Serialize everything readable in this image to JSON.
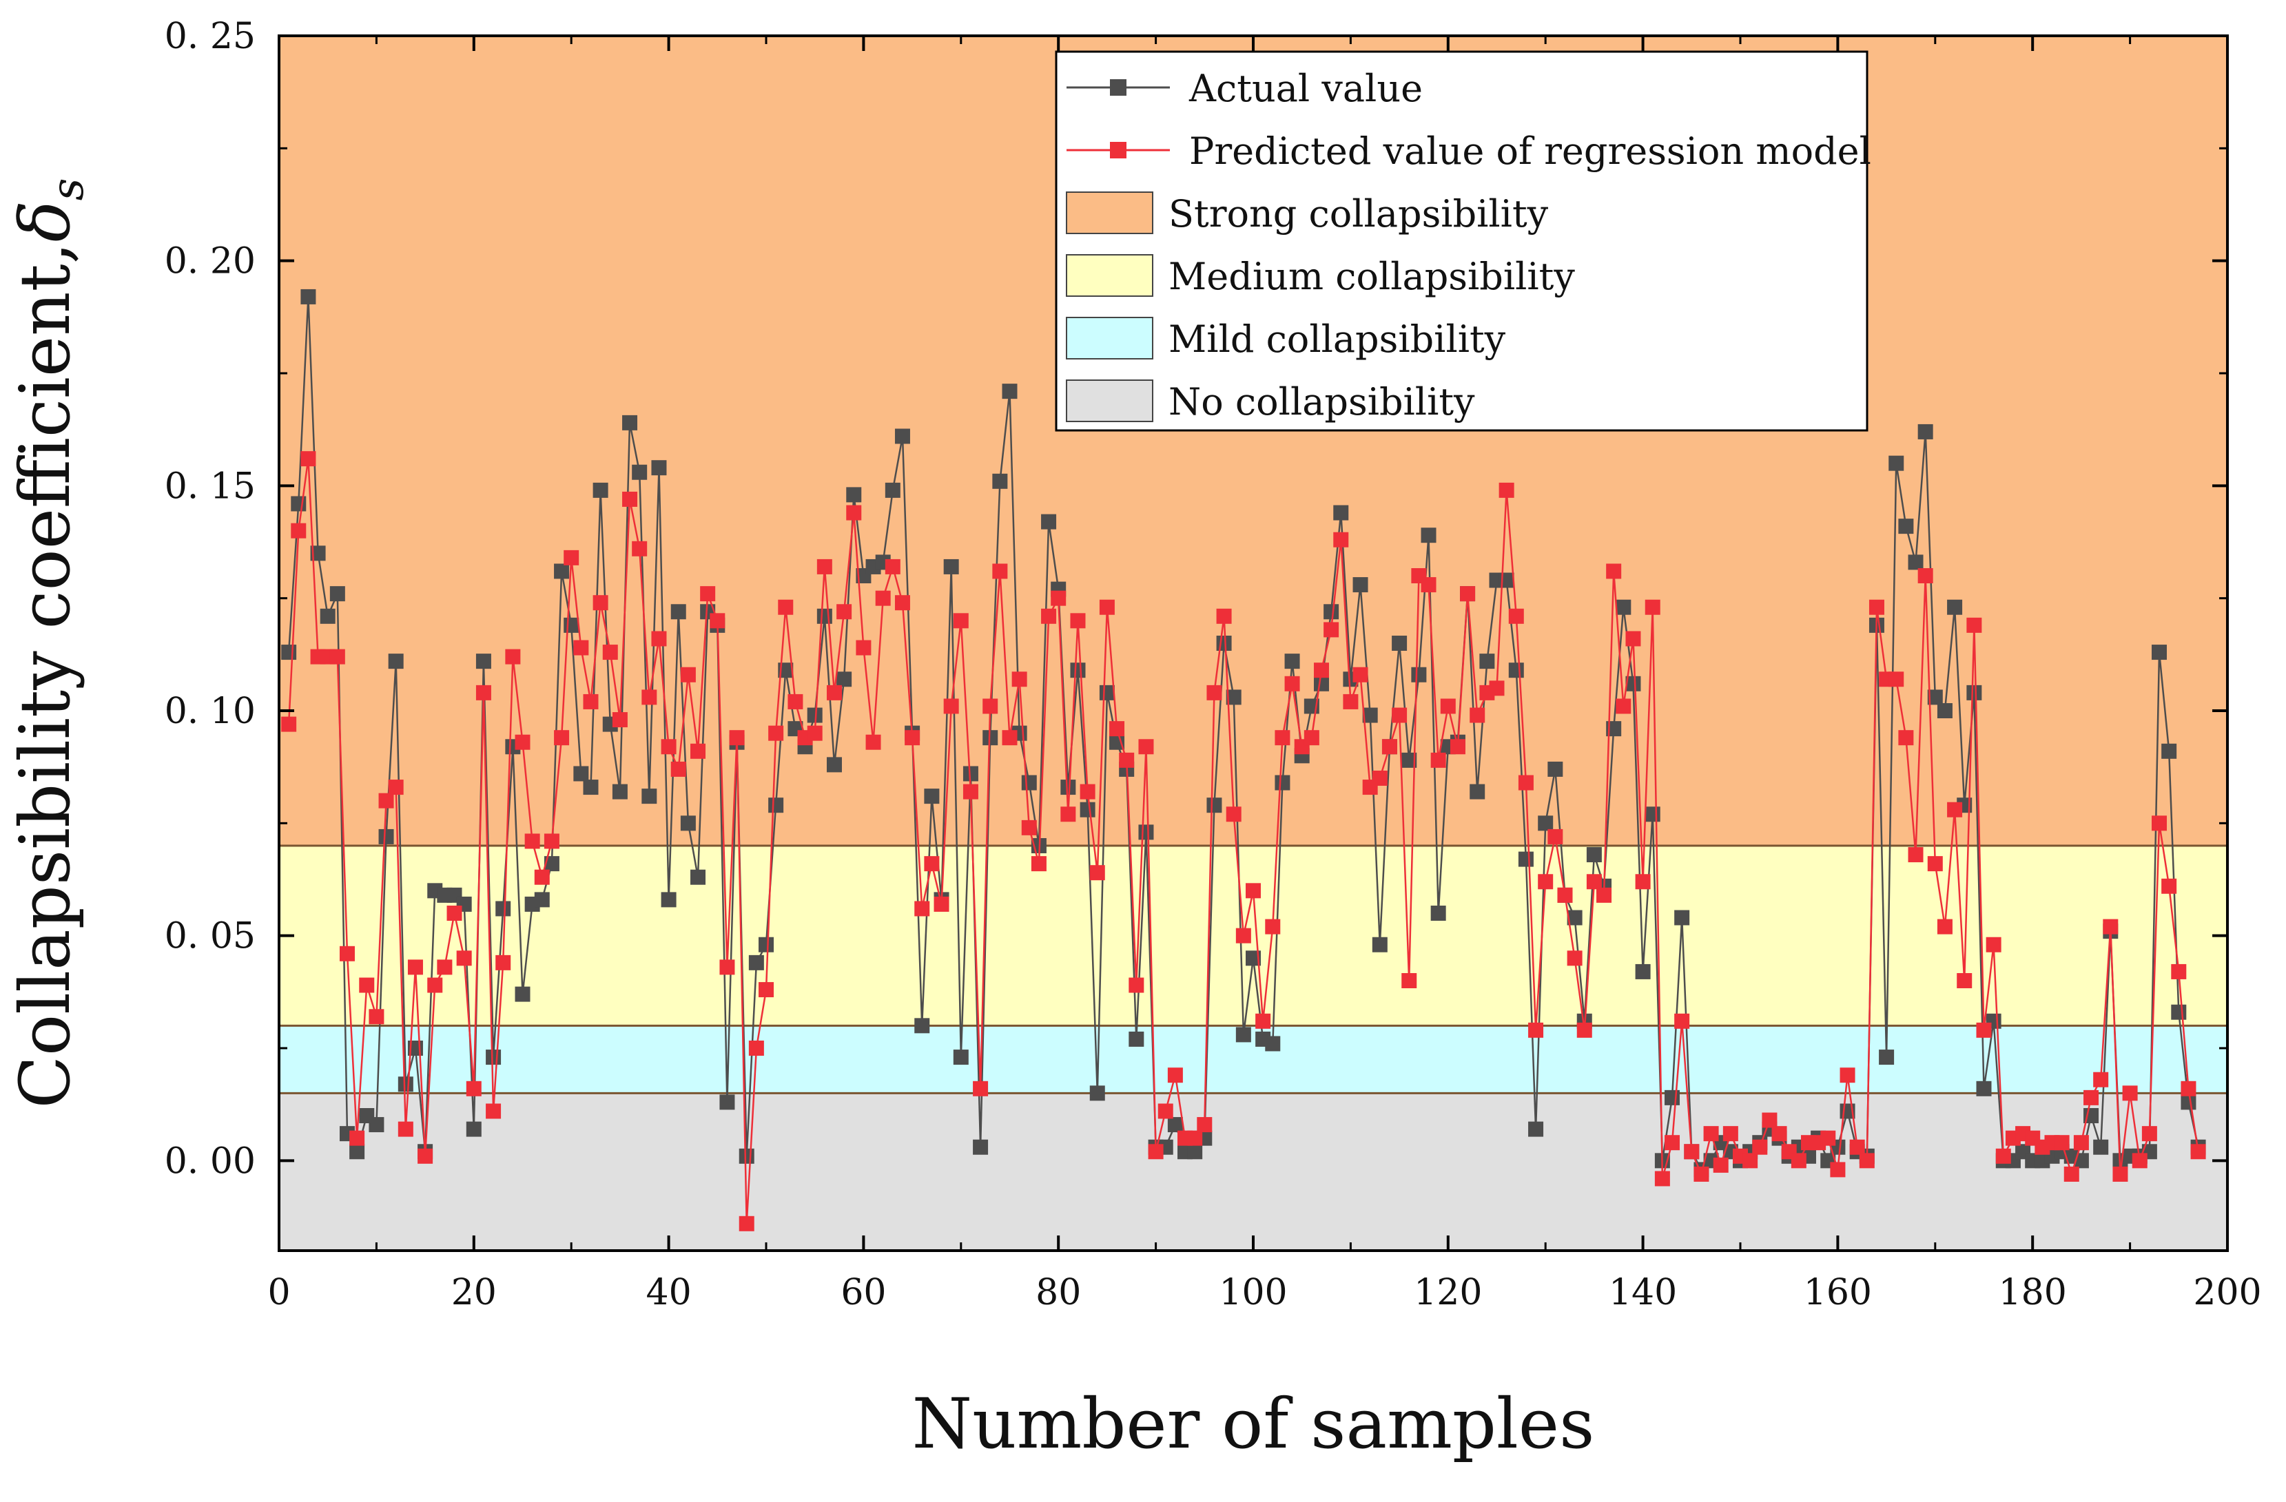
{
  "chart_data": {
    "type": "line",
    "xlabel": "Number of samples",
    "ylabel": "Collapsibility coefficient,",
    "ylabel_symbol": "δ",
    "ylabel_subscript": "s",
    "xlim": [
      0,
      200
    ],
    "ylim": [
      -0.02,
      0.25
    ],
    "xticks": [
      0,
      20,
      40,
      60,
      80,
      100,
      120,
      140,
      160,
      180,
      200
    ],
    "yticks": [
      0.0,
      0.05,
      0.1,
      0.15,
      0.2,
      0.25
    ],
    "ytick_labels": [
      "0. 00",
      "0. 05",
      "0. 10",
      "0. 15",
      "0. 20",
      "0. 25"
    ],
    "grid": false,
    "legend_position": "top-right",
    "zones": [
      {
        "name": "Strong collapsibility",
        "y0": 0.07,
        "y1": 0.25,
        "color": "#fbbc86"
      },
      {
        "name": "Medium collapsibility",
        "y0": 0.03,
        "y1": 0.07,
        "color": "#ffffc0"
      },
      {
        "name": "Mild collapsibility",
        "y0": 0.015,
        "y1": 0.03,
        "color": "#ccfdff"
      },
      {
        "name": "No collapsibility",
        "y0": -0.02,
        "y1": 0.015,
        "color": "#e0e0e0"
      }
    ],
    "series": [
      {
        "name": "Actual value",
        "color": "#4d4d4d",
        "x_start": 1,
        "values": [
          0.113,
          0.146,
          0.192,
          0.135,
          0.121,
          0.126,
          0.006,
          0.002,
          0.01,
          0.008,
          0.072,
          0.111,
          0.017,
          0.025,
          0.002,
          0.06,
          0.059,
          0.059,
          0.057,
          0.007,
          0.111,
          0.023,
          0.056,
          0.092,
          0.037,
          0.057,
          0.058,
          0.066,
          0.131,
          0.119,
          0.086,
          0.083,
          0.149,
          0.097,
          0.082,
          0.164,
          0.153,
          0.081,
          0.154,
          0.058,
          0.122,
          0.075,
          0.063,
          0.122,
          0.119,
          0.013,
          0.093,
          0.001,
          0.044,
          0.048,
          0.079,
          0.109,
          0.096,
          0.092,
          0.099,
          0.121,
          0.088,
          0.107,
          0.148,
          0.13,
          0.132,
          0.133,
          0.149,
          0.161,
          0.095,
          0.03,
          0.081,
          0.058,
          0.132,
          0.023,
          0.086,
          0.003,
          0.094,
          0.151,
          0.171,
          0.095,
          0.084,
          0.07,
          0.142,
          0.127,
          0.083,
          0.109,
          0.078,
          0.015,
          0.104,
          0.093,
          0.087,
          0.027,
          0.073,
          0.003,
          0.003,
          0.008,
          0.002,
          0.002,
          0.005,
          0.079,
          0.115,
          0.103,
          0.028,
          0.045,
          0.027,
          0.026,
          0.084,
          0.111,
          0.09,
          0.101,
          0.106,
          0.122,
          0.144,
          0.107,
          0.128,
          0.099,
          0.048,
          0.092,
          0.115,
          0.089,
          0.108,
          0.139,
          0.055,
          0.092,
          0.093,
          0.126,
          0.082,
          0.111,
          0.129,
          0.129,
          0.109,
          0.067,
          0.007,
          0.075,
          0.087,
          0.059,
          0.054,
          0.031,
          0.068,
          0.061,
          0.096,
          0.123,
          0.106,
          0.042,
          0.077,
          0.0,
          0.014,
          0.054,
          0.002,
          -0.002,
          0.0,
          0.004,
          0.002,
          0.0,
          0.002,
          0.004,
          0.007,
          0.005,
          0.001,
          0.003,
          0.001,
          0.005,
          0.0,
          0.003,
          0.011,
          0.002,
          0.001,
          0.119,
          0.023,
          0.155,
          0.141,
          0.133,
          0.162,
          0.103,
          0.1,
          0.123,
          0.079,
          0.104,
          0.016,
          0.031,
          0.0,
          0.0,
          0.002,
          0.0,
          0.0,
          0.001,
          0.002,
          0.001,
          0.0,
          0.01,
          0.003,
          0.051,
          0.0,
          0.001,
          0.001,
          0.002,
          0.113,
          0.091,
          0.033,
          0.013,
          0.003
        ]
      },
      {
        "name": "Predicted value of regression model",
        "color": "#ee2f38",
        "x_start": 1,
        "values": [
          0.097,
          0.14,
          0.156,
          0.112,
          0.112,
          0.112,
          0.046,
          0.005,
          0.039,
          0.032,
          0.08,
          0.083,
          0.007,
          0.043,
          0.001,
          0.039,
          0.043,
          0.055,
          0.045,
          0.016,
          0.104,
          0.011,
          0.044,
          0.112,
          0.093,
          0.071,
          0.063,
          0.071,
          0.094,
          0.134,
          0.114,
          0.102,
          0.124,
          0.113,
          0.098,
          0.147,
          0.136,
          0.103,
          0.116,
          0.092,
          0.087,
          0.108,
          0.091,
          0.126,
          0.12,
          0.043,
          0.094,
          -0.014,
          0.025,
          0.038,
          0.095,
          0.123,
          0.102,
          0.094,
          0.095,
          0.132,
          0.104,
          0.122,
          0.144,
          0.114,
          0.093,
          0.125,
          0.132,
          0.124,
          0.094,
          0.056,
          0.066,
          0.057,
          0.101,
          0.12,
          0.082,
          0.016,
          0.101,
          0.131,
          0.094,
          0.107,
          0.074,
          0.066,
          0.121,
          0.125,
          0.077,
          0.12,
          0.082,
          0.064,
          0.123,
          0.096,
          0.089,
          0.039,
          0.092,
          0.002,
          0.011,
          0.019,
          0.005,
          0.005,
          0.008,
          0.104,
          0.121,
          0.077,
          0.05,
          0.06,
          0.031,
          0.052,
          0.094,
          0.106,
          0.092,
          0.094,
          0.109,
          0.118,
          0.138,
          0.102,
          0.108,
          0.083,
          0.085,
          0.092,
          0.099,
          0.04,
          0.13,
          0.128,
          0.089,
          0.101,
          0.092,
          0.126,
          0.099,
          0.104,
          0.105,
          0.149,
          0.121,
          0.084,
          0.029,
          0.062,
          0.072,
          0.059,
          0.045,
          0.029,
          0.062,
          0.059,
          0.131,
          0.101,
          0.116,
          0.062,
          0.123,
          -0.004,
          0.004,
          0.031,
          0.002,
          -0.003,
          0.006,
          -0.001,
          0.006,
          0.001,
          0.0,
          0.003,
          0.009,
          0.006,
          0.002,
          0.0,
          0.004,
          0.004,
          0.005,
          -0.002,
          0.019,
          0.003,
          0.0,
          0.123,
          0.107,
          0.107,
          0.094,
          0.068,
          0.13,
          0.066,
          0.052,
          0.078,
          0.04,
          0.119,
          0.029,
          0.048,
          0.001,
          0.005,
          0.006,
          0.005,
          0.003,
          0.004,
          0.004,
          -0.003,
          0.004,
          0.014,
          0.018,
          0.052,
          -0.003,
          0.015,
          0.0,
          0.006,
          0.075,
          0.061,
          0.042,
          0.016,
          0.002
        ]
      }
    ]
  }
}
